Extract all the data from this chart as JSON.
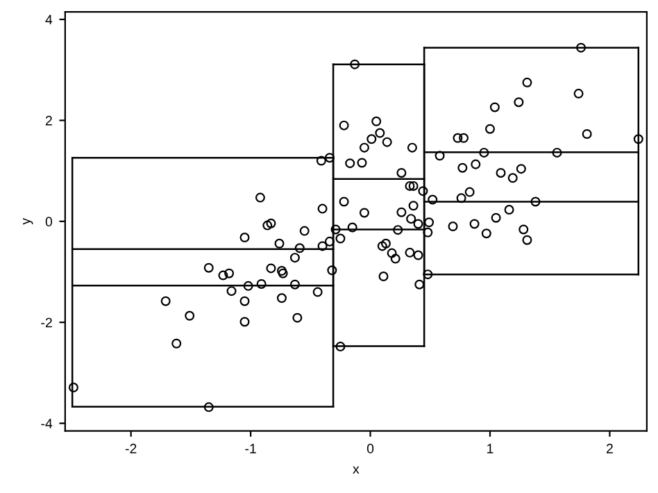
{
  "chart_data": {
    "type": "scatter",
    "xlabel": "x",
    "ylabel": "y",
    "xlim": [
      -2.55,
      2.31
    ],
    "ylim": [
      -4.15,
      4.15
    ],
    "xticks": [
      -2,
      -1,
      0,
      1,
      2
    ],
    "yticks": [
      -4,
      -2,
      0,
      2,
      4
    ],
    "grid": false,
    "legend": false,
    "series": [
      {
        "marker": "circle",
        "color": "#000000",
        "x": [
          -0.41,
          -0.34,
          -0.22,
          -0.92,
          -0.22,
          -0.4,
          -0.86,
          -0.83,
          -1.05,
          -0.76,
          -0.55,
          -0.29,
          -0.25,
          -0.34,
          -0.4,
          -0.59,
          -1.35,
          -1.23,
          -1.18,
          -0.83,
          -0.74,
          -0.73,
          -0.63,
          -0.32,
          -1.16,
          -1.02,
          -0.91,
          -0.63,
          -0.44,
          -1.71,
          -1.05,
          -0.74,
          -1.51,
          -1.05,
          -0.61,
          -1.62,
          -0.25,
          -2.48,
          -1.35,
          -0.13,
          1.76,
          1.31,
          1.04,
          1.24,
          1.74,
          1.81,
          2.24,
          1.0,
          0.73,
          0.78,
          0.05,
          0.08,
          0.01,
          0.14,
          -0.05,
          0.35,
          -0.17,
          -0.07,
          0.58,
          0.95,
          1.56,
          0.77,
          0.88,
          1.09,
          1.19,
          1.26,
          0.26,
          0.33,
          0.36,
          0.44,
          0.52,
          0.76,
          0.83,
          1.38,
          1.16,
          1.05,
          -0.05,
          0.36,
          0.26,
          0.34,
          0.4,
          0.49,
          0.48,
          0.69,
          0.87,
          0.97,
          1.28,
          1.31,
          0.23,
          -0.15,
          0.1,
          0.13,
          0.18,
          0.21,
          0.33,
          0.4,
          0.11,
          0.41,
          0.48
        ],
        "values": [
          1.2,
          1.26,
          1.9,
          0.47,
          0.39,
          0.25,
          -0.08,
          -0.04,
          -0.32,
          -0.44,
          -0.19,
          -0.16,
          -0.34,
          -0.4,
          -0.49,
          -0.53,
          -0.92,
          -1.07,
          -1.03,
          -0.93,
          -0.98,
          -1.03,
          -0.72,
          -0.97,
          -1.38,
          -1.28,
          -1.24,
          -1.25,
          -1.4,
          -1.58,
          -1.58,
          -1.52,
          -1.87,
          -1.99,
          -1.91,
          -2.42,
          -2.48,
          -3.29,
          -3.68,
          3.11,
          3.44,
          2.75,
          2.26,
          2.36,
          2.53,
          1.73,
          1.63,
          1.83,
          1.65,
          1.65,
          1.98,
          1.75,
          1.63,
          1.57,
          1.46,
          1.46,
          1.15,
          1.16,
          1.3,
          1.36,
          1.36,
          1.06,
          1.13,
          0.96,
          0.86,
          1.04,
          0.96,
          0.7,
          0.7,
          0.6,
          0.43,
          0.46,
          0.58,
          0.39,
          0.23,
          0.07,
          0.17,
          0.31,
          0.18,
          0.05,
          -0.05,
          -0.02,
          -0.22,
          -0.1,
          -0.05,
          -0.24,
          -0.16,
          -0.37,
          -0.17,
          -0.12,
          -0.49,
          -0.44,
          -0.63,
          -0.74,
          -0.62,
          -0.67,
          -1.09,
          -1.25,
          -1.05
        ]
      },
      {
        "type": "line",
        "color": "#000000",
        "x": [
          -2.49,
          -0.31
        ],
        "values": [
          1.26,
          1.26
        ]
      },
      {
        "type": "line",
        "color": "#000000",
        "x": [
          -2.49,
          -0.31
        ],
        "values": [
          -3.67,
          -3.67
        ]
      },
      {
        "type": "line",
        "color": "#000000",
        "x": [
          -2.49,
          -2.49
        ],
        "values": [
          -3.67,
          1.26
        ]
      },
      {
        "type": "line",
        "color": "#000000",
        "x": [
          -0.31,
          -0.31
        ],
        "values": [
          -3.67,
          1.26
        ]
      },
      {
        "type": "line",
        "color": "#000000",
        "x": [
          -2.49,
          -0.31
        ],
        "values": [
          -0.55,
          -0.55
        ]
      },
      {
        "type": "line",
        "color": "#000000",
        "x": [
          -2.49,
          -0.31
        ],
        "values": [
          -1.27,
          -1.27
        ]
      },
      {
        "type": "line",
        "color": "#000000",
        "x": [
          -0.31,
          0.45
        ],
        "values": [
          3.11,
          3.11
        ]
      },
      {
        "type": "line",
        "color": "#000000",
        "x": [
          -0.31,
          0.45
        ],
        "values": [
          -2.47,
          -2.47
        ]
      },
      {
        "type": "line",
        "color": "#000000",
        "x": [
          -0.31,
          -0.31
        ],
        "values": [
          -2.47,
          3.11
        ]
      },
      {
        "type": "line",
        "color": "#000000",
        "x": [
          0.45,
          0.45
        ],
        "values": [
          -2.47,
          3.11
        ]
      },
      {
        "type": "line",
        "color": "#000000",
        "x": [
          -0.31,
          0.45
        ],
        "values": [
          0.84,
          0.84
        ]
      },
      {
        "type": "line",
        "color": "#000000",
        "x": [
          -0.31,
          0.45
        ],
        "values": [
          -0.16,
          -0.16
        ]
      },
      {
        "type": "line",
        "color": "#000000",
        "x": [
          0.45,
          2.24
        ],
        "values": [
          3.44,
          3.44
        ]
      },
      {
        "type": "line",
        "color": "#000000",
        "x": [
          0.45,
          2.24
        ],
        "values": [
          -1.05,
          -1.05
        ]
      },
      {
        "type": "line",
        "color": "#000000",
        "x": [
          0.45,
          0.45
        ],
        "values": [
          -1.05,
          3.44
        ]
      },
      {
        "type": "line",
        "color": "#000000",
        "x": [
          2.24,
          2.24
        ],
        "values": [
          -1.05,
          3.44
        ]
      },
      {
        "type": "line",
        "color": "#000000",
        "x": [
          0.45,
          2.24
        ],
        "values": [
          1.37,
          1.37
        ]
      },
      {
        "type": "line",
        "color": "#000000",
        "x": [
          0.45,
          2.24
        ],
        "values": [
          0.39,
          0.39
        ]
      }
    ]
  }
}
